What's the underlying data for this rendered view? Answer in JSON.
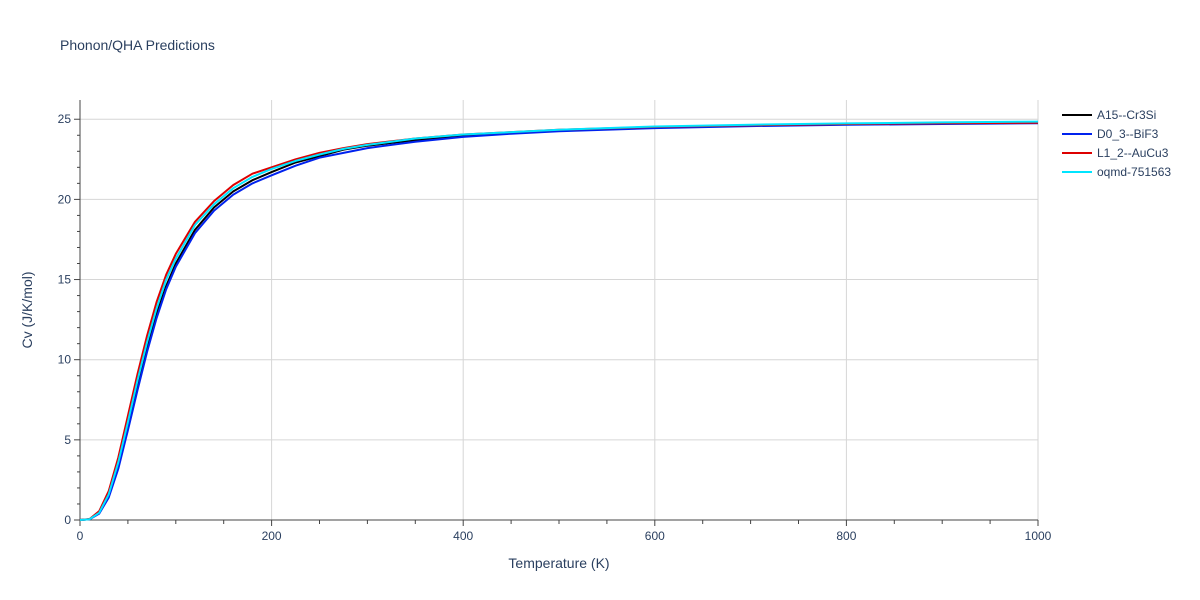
{
  "chart_data": {
    "type": "line",
    "title": "Phonon/QHA Predictions",
    "xlabel": "Temperature (K)",
    "ylabel": "Cv (J/K/mol)",
    "xlim": [
      0,
      1000
    ],
    "ylim": [
      0,
      26.2
    ],
    "x_ticks": [
      0,
      200,
      400,
      600,
      800,
      1000
    ],
    "x_tick_labels": [
      "0",
      "200",
      "400",
      "600",
      "800",
      "1000"
    ],
    "y_ticks": [
      0,
      5,
      10,
      15,
      20,
      25
    ],
    "y_tick_labels": [
      "0",
      "5",
      "10",
      "15",
      "20",
      "25"
    ],
    "grid": true,
    "legend_position": "top-right outside",
    "x": [
      0,
      10,
      20,
      30,
      40,
      50,
      60,
      70,
      80,
      90,
      100,
      120,
      140,
      160,
      180,
      200,
      225,
      250,
      275,
      300,
      350,
      400,
      450,
      500,
      600,
      700,
      800,
      900,
      1000
    ],
    "series": [
      {
        "name": "A15--Cr3Si",
        "color": "#000000",
        "values": [
          0,
          0.05,
          0.45,
          1.5,
          3.4,
          5.9,
          8.4,
          10.8,
          12.9,
          14.6,
          16.0,
          18.1,
          19.5,
          20.5,
          21.2,
          21.7,
          22.3,
          22.7,
          23.1,
          23.35,
          23.7,
          23.95,
          24.15,
          24.3,
          24.5,
          24.6,
          24.68,
          24.74,
          24.78
        ]
      },
      {
        "name": "D0_3--BiF3",
        "color": "#0022ee",
        "values": [
          0,
          0.05,
          0.4,
          1.4,
          3.2,
          5.6,
          8.1,
          10.5,
          12.6,
          14.4,
          15.8,
          17.9,
          19.3,
          20.3,
          21.0,
          21.5,
          22.1,
          22.6,
          22.9,
          23.2,
          23.6,
          23.9,
          24.1,
          24.25,
          24.45,
          24.57,
          24.65,
          24.7,
          24.75
        ]
      },
      {
        "name": "L1_2--AuCu3",
        "color": "#dd0000",
        "values": [
          0,
          0.06,
          0.55,
          1.8,
          3.9,
          6.5,
          9.1,
          11.5,
          13.6,
          15.3,
          16.6,
          18.6,
          19.9,
          20.9,
          21.6,
          22.0,
          22.5,
          22.9,
          23.2,
          23.45,
          23.8,
          24.05,
          24.2,
          24.35,
          24.52,
          24.62,
          24.7,
          24.75,
          24.78
        ]
      },
      {
        "name": "oqmd-751563",
        "color": "#00e5ff",
        "values": [
          0,
          0.05,
          0.45,
          1.6,
          3.6,
          6.1,
          8.7,
          11.1,
          13.2,
          15.0,
          16.3,
          18.4,
          19.7,
          20.7,
          21.4,
          21.9,
          22.4,
          22.8,
          23.15,
          23.4,
          23.8,
          24.05,
          24.2,
          24.35,
          24.55,
          24.66,
          24.74,
          24.8,
          24.85
        ]
      }
    ]
  }
}
